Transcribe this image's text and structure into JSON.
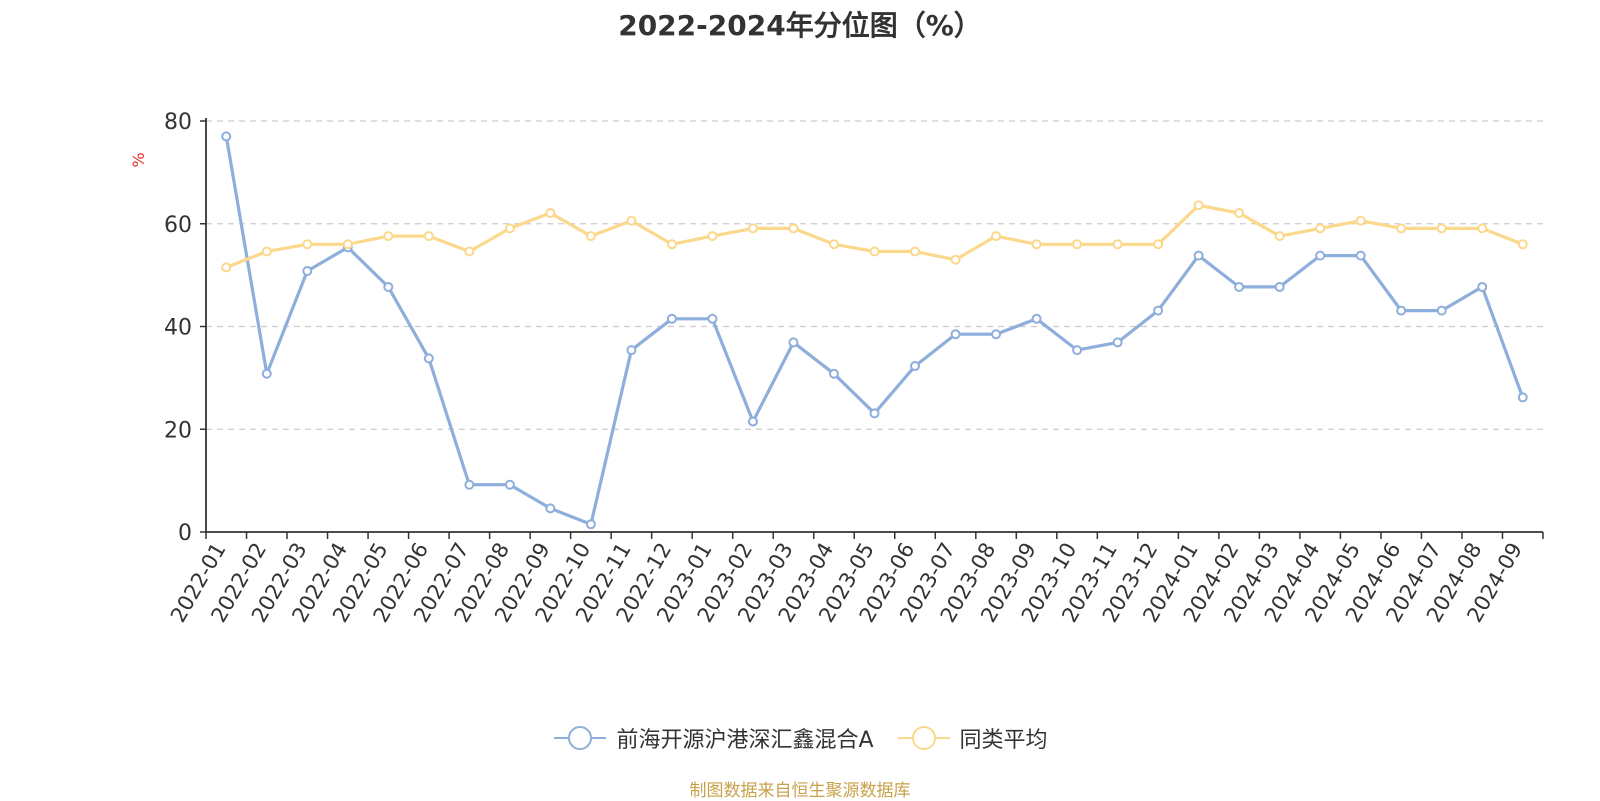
{
  "chart_data": {
    "type": "line",
    "title": "2022-2024年分位图（%）",
    "ylabel": "%",
    "xlabel": "",
    "ylim": [
      0,
      80
    ],
    "yticks": [
      0,
      20,
      40,
      60,
      80
    ],
    "grid": true,
    "legend_position": "bottom",
    "categories": [
      "2022-01",
      "2022-02",
      "2022-03",
      "2022-04",
      "2022-05",
      "2022-06",
      "2022-07",
      "2022-08",
      "2022-09",
      "2022-10",
      "2022-11",
      "2022-12",
      "2023-01",
      "2023-02",
      "2023-03",
      "2023-04",
      "2023-05",
      "2023-06",
      "2023-07",
      "2023-08",
      "2023-09",
      "2023-10",
      "2023-11",
      "2023-12",
      "2024-01",
      "2024-02",
      "2024-03",
      "2024-04",
      "2024-05",
      "2024-06",
      "2024-07",
      "2024-08",
      "2024-09"
    ],
    "series": [
      {
        "name": "前海开源沪港深汇鑫混合A",
        "color": "#8eaedb",
        "values": [
          77.0,
          30.8,
          50.8,
          55.4,
          47.7,
          33.8,
          9.2,
          9.2,
          4.6,
          1.5,
          35.4,
          41.5,
          41.5,
          21.5,
          36.9,
          30.8,
          23.1,
          32.3,
          38.5,
          38.5,
          41.5,
          35.4,
          36.9,
          43.1,
          53.8,
          47.7,
          47.7,
          53.8,
          53.8,
          43.1,
          43.1,
          47.7,
          26.2
        ]
      },
      {
        "name": "同类平均",
        "color": "#fbd88c",
        "values": [
          51.5,
          54.6,
          56.0,
          56.0,
          57.6,
          57.6,
          54.6,
          59.1,
          62.1,
          57.6,
          60.6,
          56.0,
          57.6,
          59.1,
          59.1,
          56.0,
          54.6,
          54.6,
          53.0,
          57.6,
          56.0,
          56.0,
          56.0,
          56.0,
          63.6,
          62.1,
          57.6,
          59.1,
          60.6,
          59.1,
          59.1,
          59.1,
          56.0
        ]
      }
    ]
  },
  "source_note": "制图数据来自恒生聚源数据库",
  "colors": {
    "axis": "#333333",
    "grid": "#cccccc",
    "ylabel": "#e0312f"
  }
}
